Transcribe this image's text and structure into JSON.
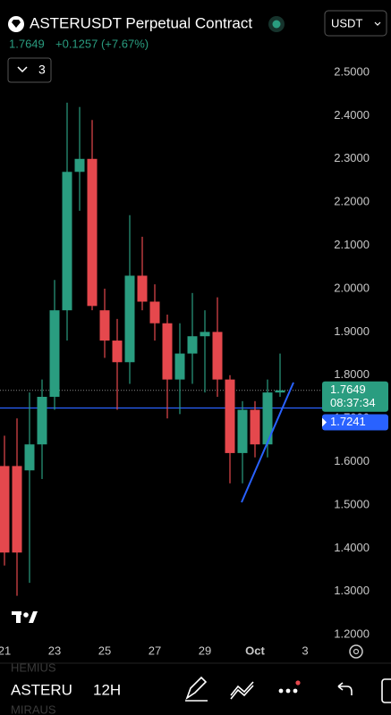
{
  "header": {
    "symbol": "ASTERUSDT Perpetual Contract",
    "price": "1.7649",
    "change": "+0.1257 (+7.67%)",
    "quote": "USDT",
    "indicator_count": "3"
  },
  "chart_data": {
    "type": "candlestick",
    "categories": [
      "21",
      null,
      null,
      null,
      "23",
      null,
      null,
      null,
      "25",
      null,
      null,
      null,
      "27",
      null,
      null,
      null,
      "29",
      null,
      null,
      null,
      "Oct",
      null,
      null,
      null,
      "3"
    ],
    "open": [
      1.59,
      1.59,
      1.58,
      1.64,
      1.75,
      1.95,
      2.27,
      2.3,
      1.95,
      1.88,
      1.83,
      2.03,
      1.97,
      1.92,
      1.79,
      1.85,
      1.89,
      1.9,
      1.79,
      1.62,
      1.72,
      1.64,
      1.76,
      null,
      null
    ],
    "high": [
      1.66,
      1.7,
      1.76,
      1.79,
      2.02,
      2.43,
      2.42,
      2.39,
      2.0,
      1.93,
      2.17,
      2.12,
      2.01,
      1.94,
      1.92,
      1.99,
      1.95,
      1.98,
      1.8,
      1.74,
      1.74,
      1.79,
      1.85,
      null,
      null
    ],
    "low": [
      1.36,
      1.29,
      1.32,
      1.56,
      1.72,
      1.88,
      2.18,
      1.95,
      1.84,
      1.72,
      1.78,
      1.95,
      1.88,
      1.7,
      1.71,
      1.78,
      1.76,
      1.75,
      1.55,
      1.55,
      1.61,
      1.61,
      1.75,
      null,
      null
    ],
    "close": [
      1.39,
      1.39,
      1.64,
      1.75,
      1.95,
      2.27,
      2.3,
      1.96,
      1.88,
      1.83,
      2.03,
      1.97,
      1.92,
      1.79,
      1.85,
      1.89,
      1.9,
      1.79,
      1.62,
      1.72,
      1.64,
      1.76,
      1.7649,
      null,
      null
    ],
    "up_color": "#2a9d80",
    "down_color": "#e5484d",
    "ylim": [
      1.2,
      2.54
    ],
    "yticks": [
      {
        "value": 1.2,
        "label": "1.2000"
      },
      {
        "value": 1.3,
        "label": "1.3000"
      },
      {
        "value": 1.4,
        "label": "1.4000"
      },
      {
        "value": 1.5,
        "label": "1.5000"
      },
      {
        "value": 1.6,
        "label": "1.6000"
      },
      {
        "value": 1.7,
        "label": "1.7000"
      },
      {
        "value": 1.8,
        "label": "1.8000"
      },
      {
        "value": 1.9,
        "label": "1.9000"
      },
      {
        "value": 2.0,
        "label": "2.0000"
      },
      {
        "value": 2.1,
        "label": "2.1000"
      },
      {
        "value": 2.2,
        "label": "2.2000"
      },
      {
        "value": 2.3,
        "label": "2.3000"
      },
      {
        "value": 2.4,
        "label": "2.4000"
      },
      {
        "value": 2.5,
        "label": "2.5000"
      }
    ],
    "grid": false,
    "last_price": 1.7649,
    "countdown": "08:37:34",
    "line_price": 1.7241,
    "line_color": "#2962ff"
  },
  "footer": {
    "symbol": "ASTERU",
    "interval": "12H",
    "above": "HEMIUS",
    "below": "MIRAUS"
  }
}
